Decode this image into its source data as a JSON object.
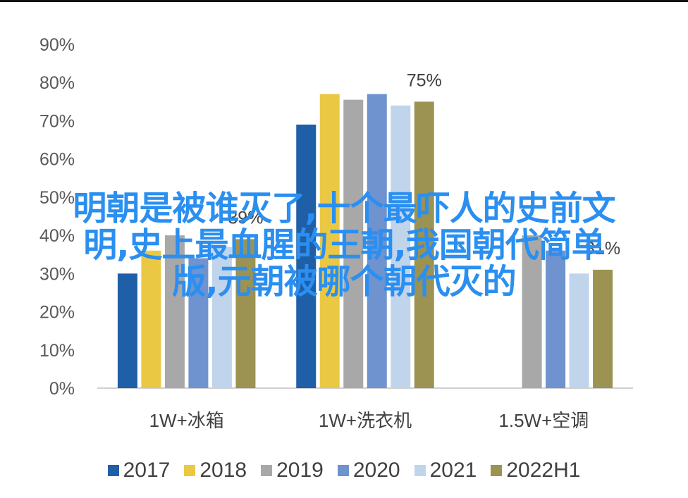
{
  "chart_data": {
    "type": "bar",
    "categories": [
      "1W+冰箱",
      "1W+洗衣机",
      "1.5W+空调"
    ],
    "series": [
      {
        "name": "2017",
        "color": "#1f5fa8",
        "values": [
          30,
          69,
          0
        ]
      },
      {
        "name": "2018",
        "color": "#ebc844",
        "values": [
          36,
          77,
          0
        ]
      },
      {
        "name": "2019",
        "color": "#a8a8a8",
        "values": [
          40,
          75.5,
          40
        ]
      },
      {
        "name": "2020",
        "color": "#6e93cf",
        "values": [
          34,
          77,
          36
        ]
      },
      {
        "name": "2021",
        "color": "#c0d4ec",
        "values": [
          37,
          74,
          30
        ]
      },
      {
        "name": "2022H1",
        "color": "#9c9252",
        "values": [
          39,
          75,
          31
        ]
      }
    ],
    "data_labels": [
      {
        "category": 0,
        "series": 5,
        "text": "39%"
      },
      {
        "category": 1,
        "series": 5,
        "text": "75%"
      },
      {
        "category": 2,
        "series": 5,
        "text": "31%"
      }
    ],
    "ylim": [
      0,
      90
    ],
    "yticks": [
      "0%",
      "10%",
      "20%",
      "30%",
      "40%",
      "50%",
      "60%",
      "70%",
      "80%",
      "90%"
    ],
    "grid": false,
    "legend_position": "bottom",
    "title": "",
    "xlabel": "",
    "ylabel": ""
  },
  "overlay": {
    "lines": [
      "明朝是被谁灭了,十个最吓人的史前文",
      "明,史上最血腥的王朝,我国朝代简单",
      "版,元朝被哪个朝代灭的"
    ]
  }
}
